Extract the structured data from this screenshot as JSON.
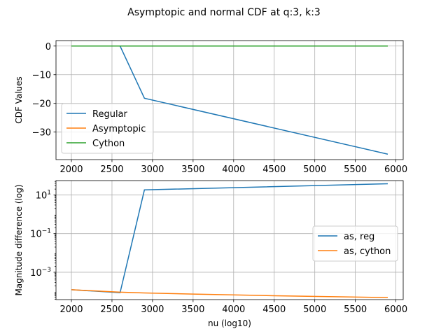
{
  "figure": {
    "title": "Asymptopic and normal CDF at q:3, k:3"
  },
  "chart_data": [
    {
      "type": "line",
      "title": "",
      "xlabel": "",
      "ylabel": "CDF Values",
      "xlim": [
        1810,
        6090
      ],
      "ylim": [
        -39.6,
        1.9
      ],
      "yscale": "linear",
      "xticks": [
        2000,
        2500,
        3000,
        3500,
        4000,
        4500,
        5000,
        5500,
        6000
      ],
      "yticks": [
        0,
        -10,
        -20,
        -30
      ],
      "ytick_labels": [
        "0",
        "−10",
        "−20",
        "−30"
      ],
      "grid": true,
      "legend_position": "lower-left",
      "series": [
        {
          "name": "Regular",
          "color": "#1f77b4",
          "x": [
            2000,
            2300,
            2600,
            2900,
            5900
          ],
          "y": [
            0,
            0,
            0,
            -18.2,
            -37.7
          ]
        },
        {
          "name": "Asymptopic",
          "color": "#ff7f0e",
          "x": [
            2000,
            2300,
            2600,
            2900,
            5900
          ],
          "y": [
            0,
            0,
            0,
            0,
            0
          ]
        },
        {
          "name": "Cython",
          "color": "#2ca02c",
          "x": [
            2000,
            2300,
            2600,
            2900,
            5900
          ],
          "y": [
            0,
            0,
            0,
            0,
            0
          ]
        }
      ]
    },
    {
      "type": "line",
      "title": "",
      "xlabel": "nu (log10)",
      "ylabel": "Magnitude difference (log)",
      "xlim": [
        1810,
        6090
      ],
      "ylim": [
        3.85e-05,
        55
      ],
      "yscale": "log",
      "xticks": [
        2000,
        2500,
        3000,
        3500,
        4000,
        4500,
        5000,
        5500,
        6000
      ],
      "yticks": [
        10,
        0.1,
        0.001
      ],
      "ytick_labels": [
        {
          "base": "10",
          "exp": "1"
        },
        {
          "base": "10",
          "exp": "−1"
        },
        {
          "base": "10",
          "exp": "−3"
        }
      ],
      "grid": true,
      "legend_position": "center-right",
      "series": [
        {
          "name": "as, reg",
          "color": "#1f77b4",
          "x": [
            2000,
            2600,
            2900,
            5900
          ],
          "y": [
            0.000125,
            8.75e-05,
            18.2,
            37.7
          ]
        },
        {
          "name": "as, cython",
          "color": "#ff7f0e",
          "x": [
            2000,
            2600,
            2900,
            3500,
            4500,
            5900
          ],
          "y": [
            0.000125,
            9.3e-05,
            8.5e-05,
            7.4e-05,
            6.1e-05,
            4.9e-05
          ]
        }
      ]
    }
  ]
}
